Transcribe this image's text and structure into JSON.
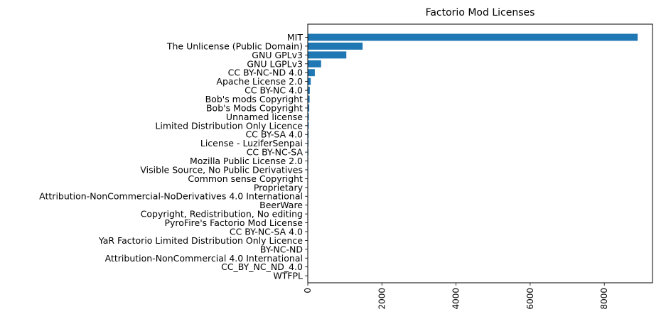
{
  "chart_data": {
    "type": "bar",
    "orientation": "horizontal",
    "title": "Factorio Mod Licenses",
    "xlabel": "",
    "ylabel": "",
    "color": "#1f77b4",
    "xlim": [
      0,
      9300
    ],
    "x_ticks": [
      0,
      2000,
      4000,
      6000,
      8000
    ],
    "x_tick_rotation": 90,
    "grid": false,
    "categories": [
      "MIT",
      "The Unlicense (Public Domain)",
      "GNU GPLv3",
      "GNU LGPLv3",
      "CC BY-NC-ND 4.0",
      "Apache License 2.0",
      "CC BY-NC 4.0",
      "Bob's mods Copyright",
      "Bob's Mods Copyright",
      "Unnamed license",
      "Limited Distribution Only Licence",
      "CC BY-SA 4.0",
      "License - LuziferSenpai",
      "CC BY-NC-SA",
      "Mozilla Public License 2.0",
      "Visible Source, No Public Derivatives",
      "Common sense Copyright",
      "Proprietary",
      "Attribution-NonCommercial-NoDerivatives 4.0 International",
      "BeerWare",
      "Copyright, Redistribution, No editing",
      "PyroFire's Factorio Mod License",
      "CC BY-NC-SA 4.0",
      "YaR Factorio Limited Distribution Only Licence",
      "BY-NC-ND",
      "Attribution-NonCommercial 4.0 International",
      "CC_BY_NC_ND_4.0",
      "WTFPL"
    ],
    "values": [
      8900,
      1480,
      1040,
      360,
      190,
      80,
      55,
      50,
      40,
      30,
      25,
      22,
      20,
      18,
      14,
      12,
      10,
      9,
      8,
      7,
      6,
      5,
      5,
      4,
      4,
      3,
      3,
      2
    ]
  }
}
